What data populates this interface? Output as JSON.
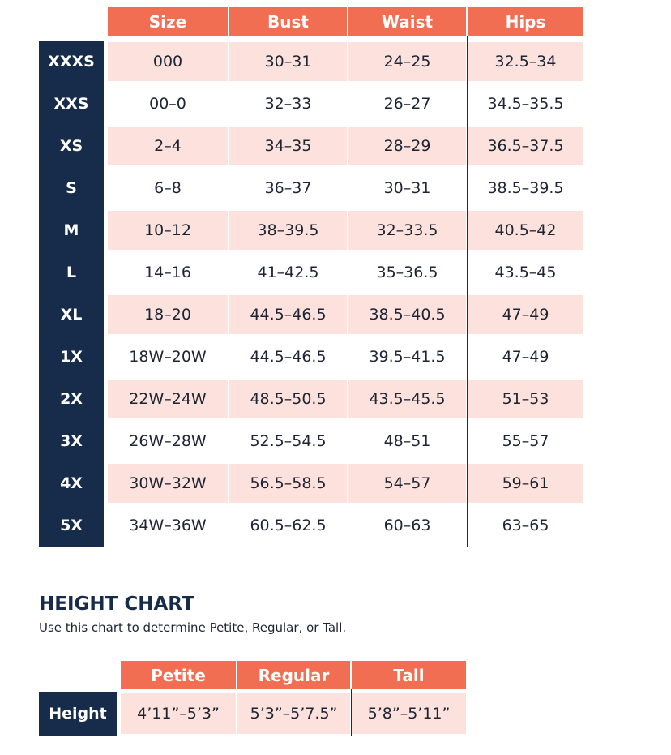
{
  "size_table": {
    "header": [
      "Size",
      "Bust",
      "Waist",
      "Hips"
    ],
    "rows": [
      {
        "label": "XXXS",
        "cells": [
          "000",
          "30–31",
          "24–25",
          "32.5–34"
        ]
      },
      {
        "label": "XXS",
        "cells": [
          "00–0",
          "32–33",
          "26–27",
          "34.5–35.5"
        ]
      },
      {
        "label": "XS",
        "cells": [
          "2–4",
          "34–35",
          "28–29",
          "36.5–37.5"
        ]
      },
      {
        "label": "S",
        "cells": [
          "6–8",
          "36–37",
          "30–31",
          "38.5–39.5"
        ]
      },
      {
        "label": "M",
        "cells": [
          "10–12",
          "38–39.5",
          "32–33.5",
          "40.5–42"
        ]
      },
      {
        "label": "L",
        "cells": [
          "14–16",
          "41–42.5",
          "35–36.5",
          "43.5–45"
        ]
      },
      {
        "label": "XL",
        "cells": [
          "18–20",
          "44.5–46.5",
          "38.5–40.5",
          "47–49"
        ]
      },
      {
        "label": "1X",
        "cells": [
          "18W–20W",
          "44.5–46.5",
          "39.5–41.5",
          "47–49"
        ]
      },
      {
        "label": "2X",
        "cells": [
          "22W–24W",
          "48.5–50.5",
          "43.5–45.5",
          "51–53"
        ]
      },
      {
        "label": "3X",
        "cells": [
          "26W–28W",
          "52.5–54.5",
          "48–51",
          "55–57"
        ]
      },
      {
        "label": "4X",
        "cells": [
          "30W–32W",
          "56.5–58.5",
          "54–57",
          "59–61"
        ]
      },
      {
        "label": "5X",
        "cells": [
          "34W–36W",
          "60.5–62.5",
          "60–63",
          "63–65"
        ]
      }
    ]
  },
  "height_chart": {
    "title": "HEIGHT CHART",
    "subtitle": "Use this chart to determine Petite, Regular, or Tall.",
    "header": [
      "Petite",
      "Regular",
      "Tall"
    ],
    "rows": [
      {
        "label": "Height",
        "cells": [
          "4’11”–5’3”",
          "5’3”–5’7.5”",
          "5’8”–5’11”"
        ]
      }
    ]
  }
}
